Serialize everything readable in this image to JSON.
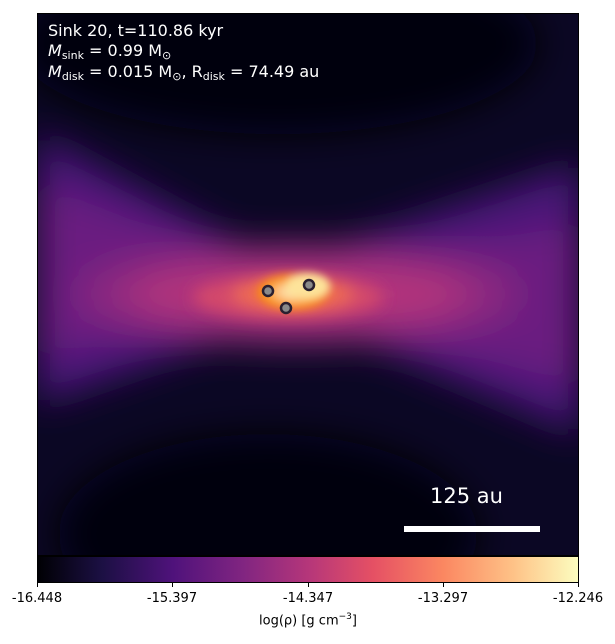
{
  "annotation": {
    "line1": "Sink 20, t=110.86 kyr",
    "m_sink_symbol": "M",
    "m_sink_sub": "sink",
    "m_sink_value": " = 0.99 M",
    "m_sink_unit_sub": "⊙",
    "m_disk_symbol": "M",
    "m_disk_sub": "disk",
    "m_disk_value": " = 0.015 M",
    "m_disk_unit_sub": "⊙",
    "r_disk_prefix": ", R",
    "r_disk_sub": "disk",
    "r_disk_value": " = 74.49 au"
  },
  "scale_bar": {
    "label": "125 au"
  },
  "colorbar": {
    "ticks": [
      "-16.448",
      "-15.397",
      "-14.347",
      "-13.297",
      "-12.246"
    ],
    "label_main": "log(ρ) [g cm",
    "label_exp": "−3",
    "label_end": "]",
    "colormap": "inferno"
  },
  "sinks": {
    "count": 3
  }
}
